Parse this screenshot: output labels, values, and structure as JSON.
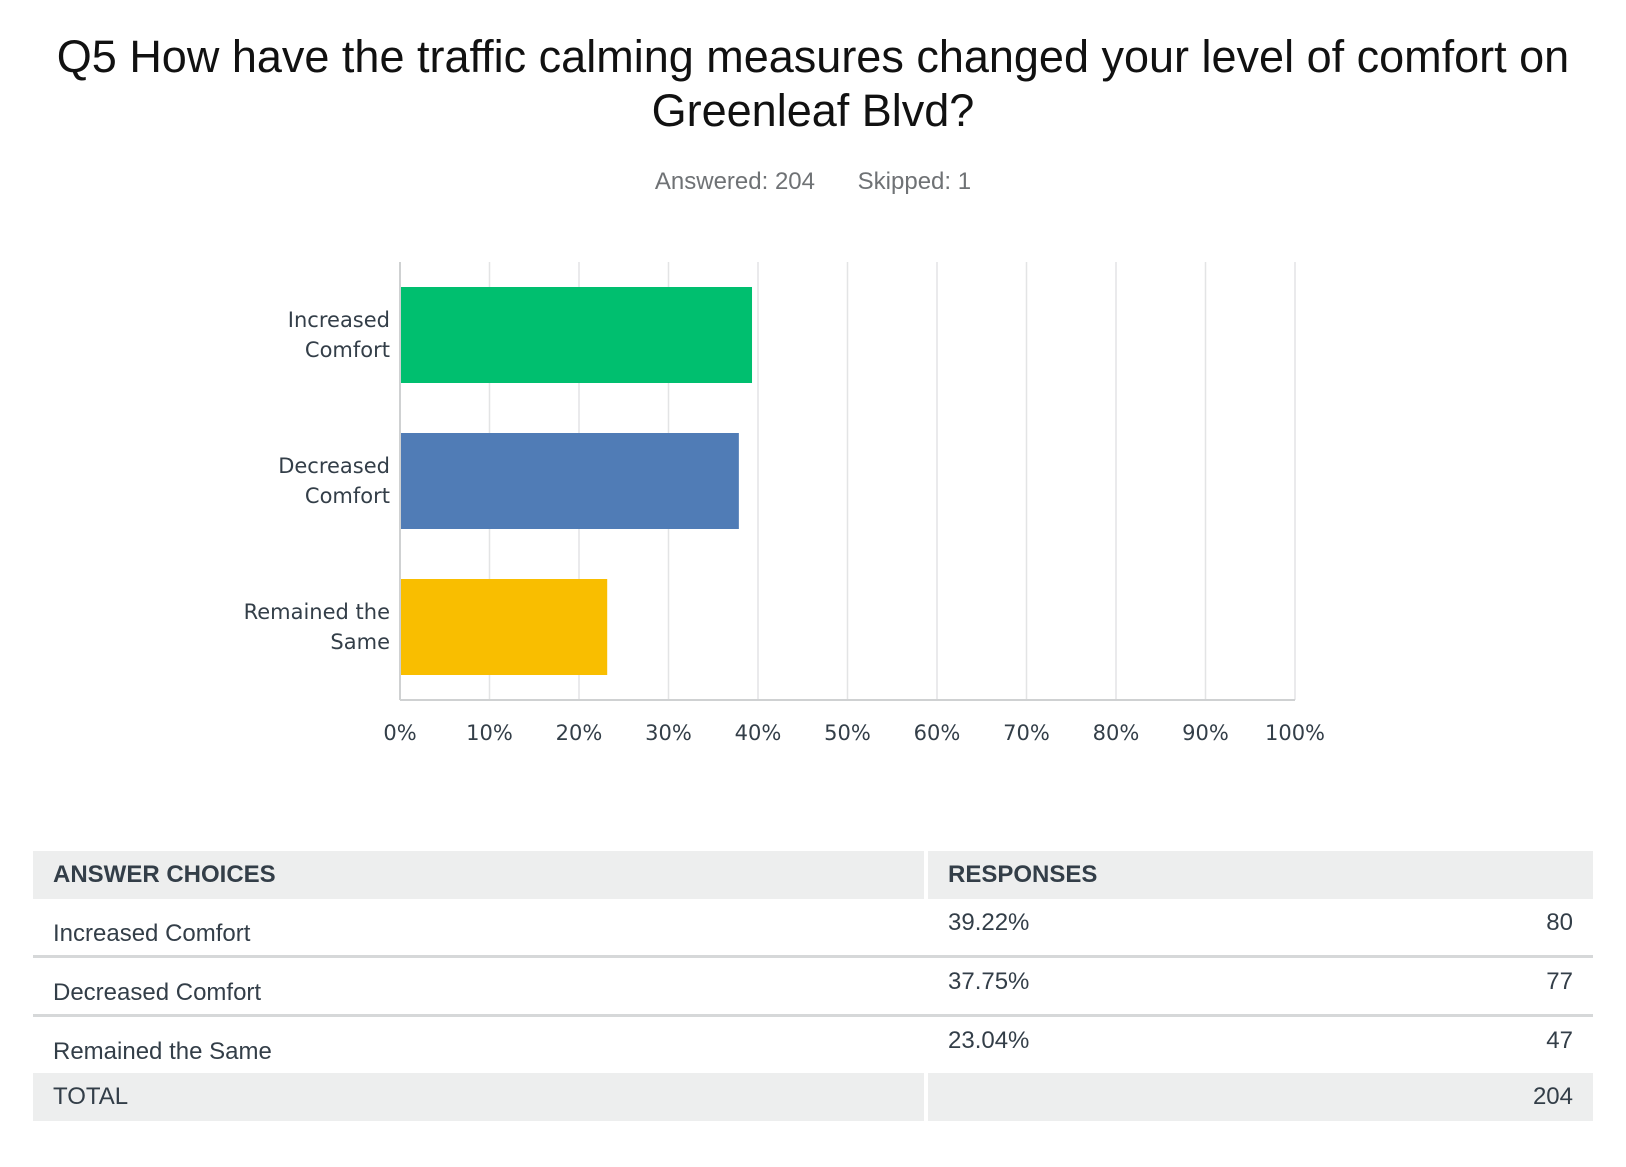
{
  "title": "Q5 How have the traffic calming measures changed your level of comfort on Greenleaf Blvd?",
  "answered": "Answered: 204",
  "skipped": "Skipped: 1",
  "chart_data": {
    "type": "bar",
    "orientation": "horizontal",
    "categories": [
      [
        "Increased",
        "Comfort"
      ],
      [
        "Decreased",
        "Comfort"
      ],
      [
        "Remained the",
        "Same"
      ]
    ],
    "values": [
      39.22,
      37.75,
      23.04
    ],
    "colors": [
      "#00bf6f",
      "#507cb6",
      "#f9be00"
    ],
    "xlim": [
      0,
      100
    ],
    "xticks": [
      "0%",
      "10%",
      "20%",
      "30%",
      "40%",
      "50%",
      "60%",
      "70%",
      "80%",
      "90%",
      "100%"
    ],
    "grid": true
  },
  "table": {
    "headers": [
      "ANSWER CHOICES",
      "RESPONSES"
    ],
    "rows": [
      {
        "choice": "Increased Comfort",
        "percent": "39.22%",
        "count": "80"
      },
      {
        "choice": "Decreased Comfort",
        "percent": "37.75%",
        "count": "77"
      },
      {
        "choice": "Remained the Same",
        "percent": "23.04%",
        "count": "47"
      }
    ],
    "total_label": "TOTAL",
    "total_value": "204"
  }
}
